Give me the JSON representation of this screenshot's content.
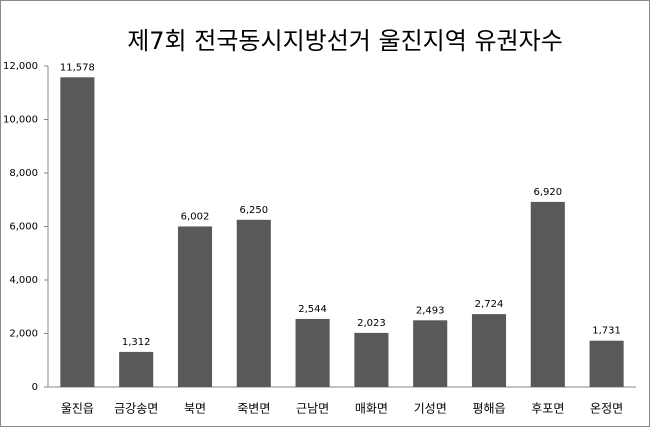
{
  "chart_data": {
    "type": "bar",
    "title": "제7회 전국동시지방선거 울진지역 유권자수",
    "categories": [
      "울진읍",
      "금강송면",
      "북면",
      "죽변면",
      "근남면",
      "매화면",
      "기성면",
      "평해읍",
      "후포면",
      "온정면"
    ],
    "values": [
      11578,
      1312,
      6002,
      6250,
      2544,
      2023,
      2493,
      2724,
      6920,
      1731
    ],
    "value_labels": [
      "11,578",
      "1,312",
      "6,002",
      "6,250",
      "2,544",
      "2,023",
      "2,493",
      "2,724",
      "6,920",
      "1,731"
    ],
    "color": "#595959",
    "ylim": [
      0,
      12000
    ],
    "yticks": [
      0,
      {
        "value": 2000,
        "label": "2,000"
      },
      {
        "value": 4000,
        "label": "4,000"
      },
      {
        "value": 6000,
        "label": "6,000"
      },
      {
        "value": 8000,
        "label": "8,000"
      },
      {
        "value": 10000,
        "label": "10,000"
      },
      {
        "value": 12000,
        "label": "12,000"
      }
    ],
    "grid": false
  }
}
